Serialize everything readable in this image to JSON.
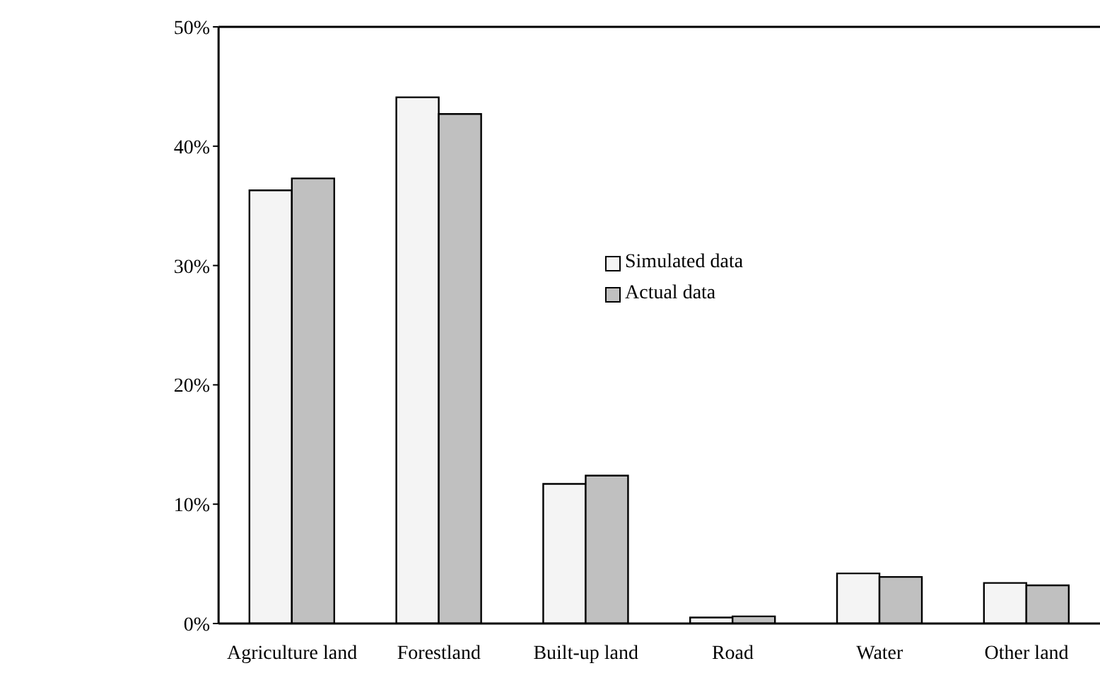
{
  "chart_data": {
    "type": "bar",
    "categories": [
      "Agriculture land",
      "Forestland",
      "Built-up land",
      "Road",
      "Water",
      "Other land"
    ],
    "series": [
      {
        "name": "Simulated data",
        "color": "#f4f4f4",
        "values": [
          36.3,
          44.1,
          11.7,
          0.5,
          4.2,
          3.4
        ]
      },
      {
        "name": "Actual data",
        "color": "#c0c0c0",
        "values": [
          37.3,
          42.7,
          12.4,
          0.6,
          3.9,
          3.2
        ]
      }
    ],
    "ylim": [
      0,
      50
    ],
    "yticks": [
      {
        "value": 0,
        "label": "0%"
      },
      {
        "value": 10,
        "label": "10%"
      },
      {
        "value": 20,
        "label": "20%"
      },
      {
        "value": 30,
        "label": "30%"
      },
      {
        "value": 40,
        "label": "40%"
      },
      {
        "value": 50,
        "label": "50%"
      }
    ],
    "grid": false,
    "legend": "center"
  }
}
